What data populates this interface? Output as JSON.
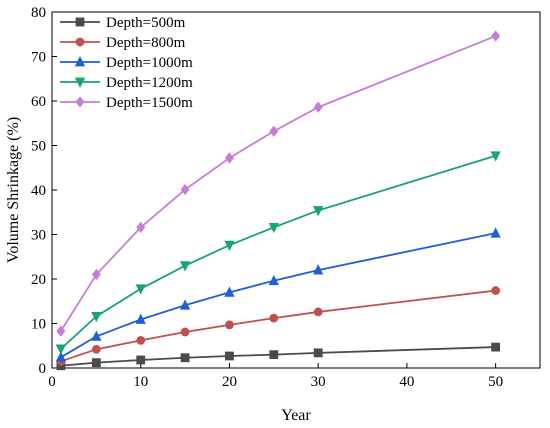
{
  "chart_data": {
    "type": "line",
    "title": "",
    "xlabel": "Year",
    "ylabel": "Volume Shrinkage (%)",
    "xlim": [
      0,
      55
    ],
    "ylim": [
      0,
      80
    ],
    "xticks": [
      0,
      10,
      20,
      30,
      40,
      50
    ],
    "yticks": [
      0,
      10,
      20,
      30,
      40,
      50,
      60,
      70,
      80
    ],
    "grid": false,
    "legend_position": "top-left",
    "x": [
      1,
      5,
      10,
      15,
      20,
      25,
      30,
      50
    ],
    "series": [
      {
        "name": "Depth=500m",
        "color": "#4a4a4a",
        "marker": "square",
        "values": [
          0.5,
          1.2,
          1.8,
          2.3,
          2.7,
          3.0,
          3.4,
          4.7
        ]
      },
      {
        "name": "Depth=800m",
        "color": "#c0504d",
        "marker": "circle",
        "values": [
          1.5,
          4.2,
          6.2,
          8.1,
          9.7,
          11.2,
          12.6,
          17.4
        ]
      },
      {
        "name": "Depth=1000m",
        "color": "#1f5fd6",
        "marker": "triangle-up",
        "values": [
          2.4,
          7.1,
          10.9,
          14.1,
          17.0,
          19.6,
          22.0,
          30.3
        ]
      },
      {
        "name": "Depth=1200m",
        "color": "#1aa36f",
        "marker": "triangle-down",
        "values": [
          4.3,
          11.6,
          17.8,
          23.0,
          27.6,
          31.6,
          35.4,
          47.7
        ]
      },
      {
        "name": "Depth=1500m",
        "color": "#c77dd8",
        "marker": "diamond",
        "values": [
          8.3,
          21.0,
          31.6,
          40.1,
          47.2,
          53.2,
          58.6,
          74.6
        ]
      }
    ]
  }
}
